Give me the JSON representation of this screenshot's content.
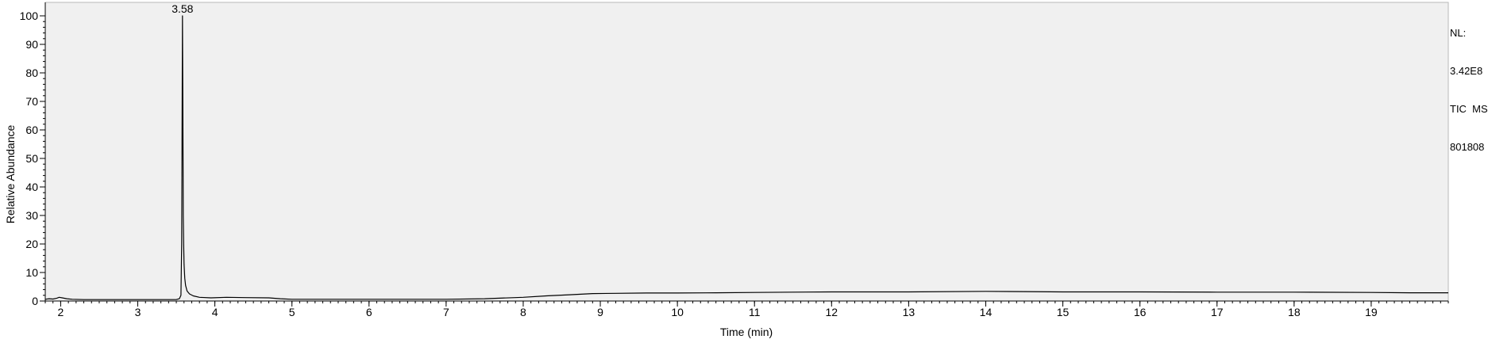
{
  "chart_data": {
    "type": "line",
    "title": "",
    "xlabel": "Time (min)",
    "ylabel": "Relative Abundance",
    "xlim": [
      1.8,
      20.0
    ],
    "ylim": [
      0,
      100
    ],
    "x_ticks": [
      "2",
      "3",
      "4",
      "5",
      "6",
      "7",
      "8",
      "9",
      "10",
      "11",
      "12",
      "13",
      "14",
      "15",
      "16",
      "17",
      "18",
      "19"
    ],
    "y_ticks": [
      "0",
      "10",
      "20",
      "30",
      "40",
      "50",
      "60",
      "70",
      "80",
      "90",
      "100"
    ],
    "grid": false,
    "legend": "none",
    "background_color": "#f0f0f0",
    "line_color": "#000000",
    "peak_annotations": [
      {
        "x": 3.58,
        "y": 100,
        "label": "3.58"
      }
    ],
    "series": [
      {
        "x": [
          1.8,
          1.85,
          1.9,
          1.95,
          1.98,
          2.02,
          2.08,
          2.15,
          2.3,
          2.6,
          3.0,
          3.3,
          3.5,
          3.54,
          3.56,
          3.57,
          3.575,
          3.58,
          3.585,
          3.59,
          3.595,
          3.6,
          3.61,
          3.62,
          3.64,
          3.67,
          3.72,
          3.8,
          3.95,
          4.15,
          4.4,
          4.7,
          4.85,
          5.0,
          6.0,
          7.0,
          7.5,
          8.0,
          8.3,
          8.6,
          8.9,
          9.2,
          9.6,
          10.0,
          10.5,
          11.0,
          11.5,
          12.0,
          13.0,
          14.0,
          14.5,
          15.0,
          16.0,
          17.0,
          18.0,
          19.0,
          19.5,
          20.0
        ],
        "y": [
          0.6,
          0.8,
          0.7,
          1.0,
          1.3,
          1.1,
          0.8,
          0.6,
          0.5,
          0.5,
          0.5,
          0.5,
          0.5,
          0.8,
          2.0,
          20.0,
          60.0,
          100.0,
          69.0,
          30.0,
          20.0,
          13.0,
          8.0,
          5.5,
          3.5,
          2.5,
          1.8,
          1.3,
          1.1,
          1.3,
          1.2,
          1.1,
          0.8,
          0.6,
          0.6,
          0.6,
          0.8,
          1.3,
          1.8,
          2.2,
          2.6,
          2.7,
          2.8,
          2.8,
          2.9,
          3.0,
          3.1,
          3.2,
          3.2,
          3.4,
          3.3,
          3.2,
          3.2,
          3.1,
          3.1,
          3.0,
          2.9,
          2.9
        ]
      }
    ]
  },
  "info_panel": {
    "lines": [
      "NL:",
      "3.42E8",
      "TIC  MS",
      "801808"
    ]
  }
}
